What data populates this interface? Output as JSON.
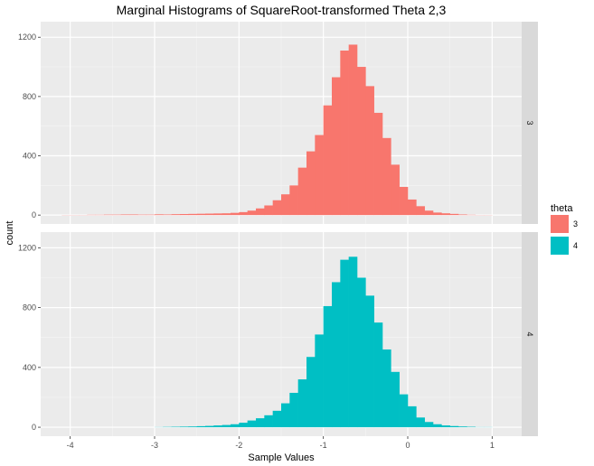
{
  "chart_data": {
    "type": "bar",
    "title": "Marginal Histograms of SquareRoot-transformed Theta 2,3",
    "xlabel": "Sample Values",
    "ylabel": "count",
    "xlim": [
      -4.35,
      1.35
    ],
    "ylim": [
      -60,
      1305
    ],
    "x_ticks": [
      -4,
      -3,
      -2,
      -1,
      0,
      1
    ],
    "x_tick_labels": [
      "-4",
      "-3",
      "-2",
      "-1",
      "0",
      "1"
    ],
    "y_ticks": [
      0,
      400,
      800,
      1200
    ],
    "y_tick_labels": [
      "0",
      "400",
      "800",
      "1200"
    ],
    "bin_width": 0.1,
    "bin_starts": [
      -4.1,
      -4.0,
      -3.9,
      -3.8,
      -3.7,
      -3.6,
      -3.5,
      -3.4,
      -3.3,
      -3.2,
      -3.1,
      -3.0,
      -2.9,
      -2.8,
      -2.7,
      -2.6,
      -2.5,
      -2.4,
      -2.3,
      -2.2,
      -2.1,
      -2.0,
      -1.9,
      -1.8,
      -1.7,
      -1.6,
      -1.5,
      -1.4,
      -1.3,
      -1.2,
      -1.1,
      -1.0,
      -0.9,
      -0.8,
      -0.7,
      -0.6,
      -0.5,
      -0.4,
      -0.3,
      -0.2,
      -0.1,
      0.0,
      0.1,
      0.2,
      0.3,
      0.4,
      0.5,
      0.6,
      0.7,
      0.8,
      0.9
    ],
    "grid": true,
    "legend_position": "right",
    "legend_title": "theta",
    "facets": [
      {
        "strip_label": "3",
        "legend_label": "3",
        "color": "#F8766D",
        "values": [
          1,
          1,
          1,
          2,
          2,
          3,
          3,
          4,
          4,
          3,
          3,
          5,
          4,
          6,
          7,
          8,
          9,
          10,
          11,
          12,
          15,
          20,
          30,
          45,
          65,
          100,
          140,
          200,
          320,
          430,
          540,
          740,
          930,
          1110,
          1150,
          1000,
          870,
          690,
          520,
          340,
          190,
          105,
          60,
          30,
          17,
          12,
          8,
          4,
          2,
          1,
          1
        ]
      },
      {
        "strip_label": "4",
        "legend_label": "4",
        "color": "#00BFC4",
        "values": [
          0,
          0,
          0,
          0,
          0,
          0,
          0,
          0,
          0,
          0,
          0,
          1,
          2,
          3,
          4,
          5,
          7,
          9,
          12,
          15,
          20,
          30,
          45,
          60,
          80,
          110,
          160,
          230,
          320,
          470,
          620,
          810,
          970,
          1120,
          1140,
          1000,
          880,
          700,
          520,
          370,
          220,
          140,
          65,
          35,
          20,
          12,
          8,
          5,
          3,
          1,
          1
        ]
      }
    ]
  }
}
